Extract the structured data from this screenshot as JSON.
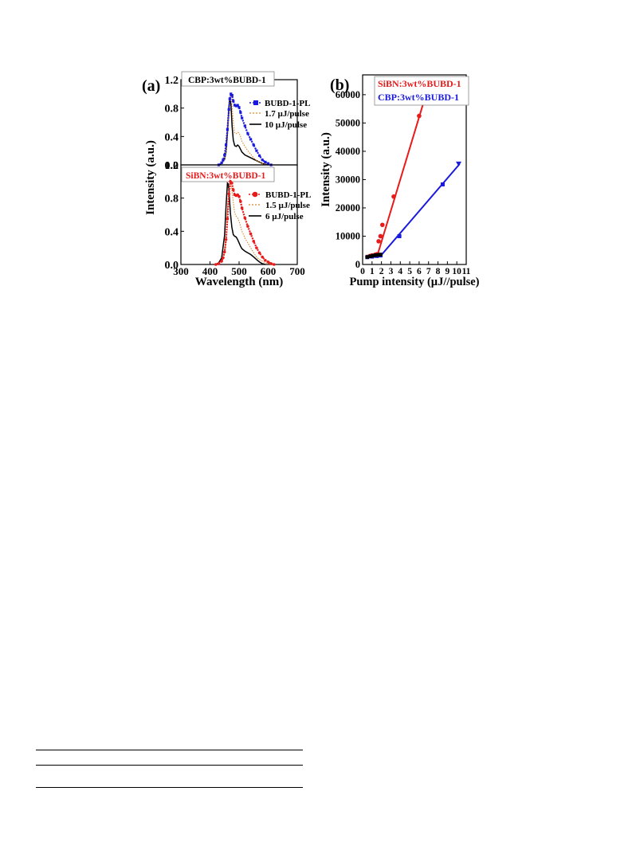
{
  "figure": {
    "panel_a_label": "(a)",
    "panel_b_label": "(b)"
  },
  "colors": {
    "blue": "#1a1adf",
    "red": "#e81a1a",
    "orange": "#e0862a",
    "black": "#000000"
  },
  "chart_data": [
    {
      "id": "a-top",
      "type": "line",
      "title": "CBP:3wt%BUBD-1",
      "xlim": [
        300,
        700
      ],
      "ylim": [
        0.0,
        1.2
      ],
      "yticks": [
        "0.0",
        "0.4",
        "0.8",
        "1.2"
      ],
      "legend": [
        "BUBD-1-PL",
        "1.7 µJ/pulse",
        "10 µJ/pulse"
      ],
      "series": [
        {
          "name": "BUBD-1-PL",
          "color": "#1a1adf",
          "x": [
            430,
            440,
            445,
            450,
            455,
            460,
            465,
            468,
            472,
            476,
            480,
            485,
            490,
            495,
            500,
            505,
            510,
            520,
            530,
            540,
            550,
            560,
            570,
            580,
            590,
            600,
            610
          ],
          "y": [
            0.0,
            0.03,
            0.07,
            0.14,
            0.28,
            0.5,
            0.78,
            0.93,
            1.0,
            0.98,
            0.9,
            0.84,
            0.83,
            0.84,
            0.81,
            0.74,
            0.66,
            0.55,
            0.44,
            0.36,
            0.28,
            0.2,
            0.13,
            0.07,
            0.04,
            0.02,
            0.0
          ]
        },
        {
          "name": "1.7 µJ/pulse",
          "color": "#e0862a",
          "x": [
            430,
            440,
            450,
            455,
            460,
            465,
            468,
            472,
            476,
            480,
            485,
            490,
            495,
            500,
            505,
            510,
            520,
            530,
            540,
            550,
            560,
            570,
            580,
            590,
            600
          ],
          "y": [
            0.0,
            0.02,
            0.08,
            0.16,
            0.38,
            0.78,
            0.95,
            0.98,
            0.82,
            0.6,
            0.45,
            0.44,
            0.46,
            0.45,
            0.4,
            0.33,
            0.26,
            0.2,
            0.15,
            0.1,
            0.06,
            0.04,
            0.02,
            0.01,
            0.0
          ]
        },
        {
          "name": "10 µJ/pulse",
          "color": "#000000",
          "x": [
            430,
            440,
            450,
            455,
            460,
            465,
            468,
            472,
            476,
            480,
            485,
            490,
            495,
            500,
            505,
            510,
            520,
            530,
            540,
            550,
            560,
            570,
            580,
            590,
            600
          ],
          "y": [
            0.0,
            0.02,
            0.08,
            0.18,
            0.45,
            0.8,
            0.94,
            0.85,
            0.55,
            0.35,
            0.27,
            0.26,
            0.28,
            0.26,
            0.22,
            0.18,
            0.14,
            0.12,
            0.1,
            0.08,
            0.06,
            0.04,
            0.02,
            0.01,
            0.0
          ]
        }
      ]
    },
    {
      "id": "a-bottom",
      "type": "line",
      "title": "SiBN:3wt%BUBD-1",
      "xlabel": "Wavelength (nm)",
      "ylabel": "Intensity (a.u.)",
      "xlim": [
        300,
        700
      ],
      "ylim": [
        0.0,
        1.2
      ],
      "xticks": [
        "300",
        "400",
        "500",
        "600",
        "700"
      ],
      "yticks": [
        "0.0",
        "0.4",
        "0.8",
        "1.2"
      ],
      "legend": [
        "BUBD-1-PL",
        "1.5 µJ/pulse",
        "6 µJ/pulse"
      ],
      "series": [
        {
          "name": "BUBD-1-PL",
          "color": "#e81a1a",
          "x": [
            420,
            430,
            440,
            445,
            450,
            455,
            460,
            465,
            470,
            475,
            480,
            485,
            490,
            495,
            500,
            505,
            510,
            520,
            530,
            540,
            550,
            560,
            570,
            580,
            590,
            600,
            610,
            620
          ],
          "y": [
            0.0,
            0.01,
            0.04,
            0.08,
            0.15,
            0.3,
            0.55,
            0.85,
            1.0,
            0.98,
            0.9,
            0.84,
            0.83,
            0.84,
            0.82,
            0.76,
            0.68,
            0.56,
            0.46,
            0.37,
            0.28,
            0.2,
            0.14,
            0.09,
            0.05,
            0.03,
            0.01,
            0.0
          ]
        },
        {
          "name": "1.5 µJ/pulse",
          "color": "#e0862a",
          "x": [
            420,
            430,
            440,
            450,
            455,
            460,
            465,
            470,
            475,
            480,
            485,
            490,
            495,
            500,
            505,
            510,
            520,
            530,
            540,
            550,
            560,
            570,
            580,
            590,
            600,
            610
          ],
          "y": [
            0.0,
            0.01,
            0.05,
            0.15,
            0.32,
            0.65,
            0.92,
            0.97,
            0.9,
            0.75,
            0.62,
            0.58,
            0.56,
            0.52,
            0.46,
            0.4,
            0.32,
            0.26,
            0.2,
            0.14,
            0.09,
            0.06,
            0.04,
            0.02,
            0.01,
            0.0
          ]
        },
        {
          "name": "6 µJ/pulse",
          "color": "#000000",
          "x": [
            420,
            430,
            440,
            450,
            455,
            460,
            463,
            466,
            470,
            475,
            480,
            485,
            490,
            495,
            500,
            505,
            510,
            520,
            530,
            540,
            550,
            560,
            570,
            580,
            590
          ],
          "y": [
            0.0,
            0.02,
            0.08,
            0.35,
            0.7,
            0.98,
            0.97,
            0.85,
            0.62,
            0.45,
            0.36,
            0.34,
            0.33,
            0.3,
            0.26,
            0.22,
            0.19,
            0.16,
            0.14,
            0.12,
            0.09,
            0.06,
            0.03,
            0.01,
            0.0
          ]
        }
      ]
    },
    {
      "id": "b",
      "type": "scatter",
      "xlabel": "Pump intensity (µJ//pulse)",
      "ylabel": "Intensity (a.u.)",
      "xlim": [
        0,
        11
      ],
      "ylim": [
        0,
        67000
      ],
      "xticks": [
        "0",
        "1",
        "2",
        "3",
        "4",
        "5",
        "6",
        "7",
        "8",
        "9",
        "10",
        "11"
      ],
      "yticks": [
        "0",
        "10000",
        "20000",
        "30000",
        "40000",
        "50000",
        "60000"
      ],
      "legend": [
        "SiBN:3wt%BUBD-1",
        "CBP:3wt%BUBD-1"
      ],
      "series": [
        {
          "name": "SiBN:3wt%BUBD-1",
          "color": "#e81a1a",
          "x": [
            0.5,
            0.8,
            1.0,
            1.3,
            1.5,
            1.7,
            1.9,
            2.1,
            3.3,
            6.0
          ],
          "y": [
            2700,
            3000,
            3200,
            3400,
            3600,
            8200,
            10000,
            14000,
            24000,
            52500
          ],
          "fit_x": [
            1.5,
            6.4
          ],
          "fit_y": [
            2500,
            56500
          ]
        },
        {
          "name": "CBP:3wt%BUBD-1",
          "color": "#1a1adf",
          "x": [
            0.5,
            1.0,
            1.5,
            1.9,
            3.9,
            8.5,
            10.2
          ],
          "y": [
            2600,
            2800,
            3000,
            3200,
            10000,
            28300,
            35500
          ],
          "fit_x": [
            1.8,
            10.3
          ],
          "fit_y": [
            2600,
            35500
          ]
        }
      ],
      "black_points": {
        "color": "#000000",
        "x": [
          0.5,
          0.8,
          1.1,
          1.4,
          1.7,
          1.9
        ],
        "y": [
          2600,
          2900,
          3100,
          3300,
          3400,
          3500
        ]
      }
    }
  ]
}
